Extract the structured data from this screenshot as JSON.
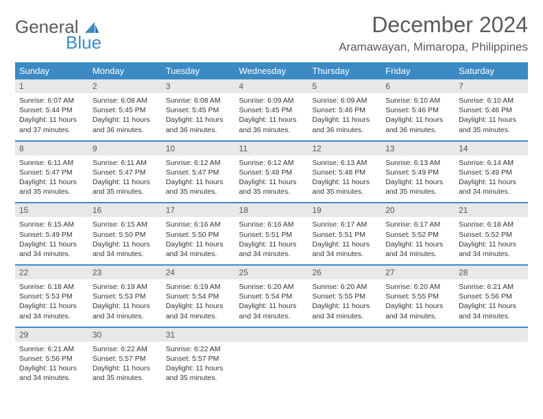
{
  "brand": {
    "part1": "General",
    "part2": "Blue"
  },
  "title": "December 2024",
  "location": "Aramawayan, Mimaropa, Philippines",
  "colors": {
    "accent": "#3b8ac4",
    "daynum_bg": "#e8e8e8",
    "text": "#333333",
    "title_text": "#5a5a5a"
  },
  "weekdays": [
    "Sunday",
    "Monday",
    "Tuesday",
    "Wednesday",
    "Thursday",
    "Friday",
    "Saturday"
  ],
  "weeks": [
    [
      {
        "n": "1",
        "sr": "6:07 AM",
        "ss": "5:44 PM",
        "dl": "11 hours and 37 minutes."
      },
      {
        "n": "2",
        "sr": "6:08 AM",
        "ss": "5:45 PM",
        "dl": "11 hours and 36 minutes."
      },
      {
        "n": "3",
        "sr": "6:08 AM",
        "ss": "5:45 PM",
        "dl": "11 hours and 36 minutes."
      },
      {
        "n": "4",
        "sr": "6:09 AM",
        "ss": "5:45 PM",
        "dl": "11 hours and 36 minutes."
      },
      {
        "n": "5",
        "sr": "6:09 AM",
        "ss": "5:46 PM",
        "dl": "11 hours and 36 minutes."
      },
      {
        "n": "6",
        "sr": "6:10 AM",
        "ss": "5:46 PM",
        "dl": "11 hours and 36 minutes."
      },
      {
        "n": "7",
        "sr": "6:10 AM",
        "ss": "5:46 PM",
        "dl": "11 hours and 35 minutes."
      }
    ],
    [
      {
        "n": "8",
        "sr": "6:11 AM",
        "ss": "5:47 PM",
        "dl": "11 hours and 35 minutes."
      },
      {
        "n": "9",
        "sr": "6:11 AM",
        "ss": "5:47 PM",
        "dl": "11 hours and 35 minutes."
      },
      {
        "n": "10",
        "sr": "6:12 AM",
        "ss": "5:47 PM",
        "dl": "11 hours and 35 minutes."
      },
      {
        "n": "11",
        "sr": "6:12 AM",
        "ss": "5:48 PM",
        "dl": "11 hours and 35 minutes."
      },
      {
        "n": "12",
        "sr": "6:13 AM",
        "ss": "5:48 PM",
        "dl": "11 hours and 35 minutes."
      },
      {
        "n": "13",
        "sr": "6:13 AM",
        "ss": "5:49 PM",
        "dl": "11 hours and 35 minutes."
      },
      {
        "n": "14",
        "sr": "6:14 AM",
        "ss": "5:49 PM",
        "dl": "11 hours and 34 minutes."
      }
    ],
    [
      {
        "n": "15",
        "sr": "6:15 AM",
        "ss": "5:49 PM",
        "dl": "11 hours and 34 minutes."
      },
      {
        "n": "16",
        "sr": "6:15 AM",
        "ss": "5:50 PM",
        "dl": "11 hours and 34 minutes."
      },
      {
        "n": "17",
        "sr": "6:16 AM",
        "ss": "5:50 PM",
        "dl": "11 hours and 34 minutes."
      },
      {
        "n": "18",
        "sr": "6:16 AM",
        "ss": "5:51 PM",
        "dl": "11 hours and 34 minutes."
      },
      {
        "n": "19",
        "sr": "6:17 AM",
        "ss": "5:51 PM",
        "dl": "11 hours and 34 minutes."
      },
      {
        "n": "20",
        "sr": "6:17 AM",
        "ss": "5:52 PM",
        "dl": "11 hours and 34 minutes."
      },
      {
        "n": "21",
        "sr": "6:18 AM",
        "ss": "5:52 PM",
        "dl": "11 hours and 34 minutes."
      }
    ],
    [
      {
        "n": "22",
        "sr": "6:18 AM",
        "ss": "5:53 PM",
        "dl": "11 hours and 34 minutes."
      },
      {
        "n": "23",
        "sr": "6:19 AM",
        "ss": "5:53 PM",
        "dl": "11 hours and 34 minutes."
      },
      {
        "n": "24",
        "sr": "6:19 AM",
        "ss": "5:54 PM",
        "dl": "11 hours and 34 minutes."
      },
      {
        "n": "25",
        "sr": "6:20 AM",
        "ss": "5:54 PM",
        "dl": "11 hours and 34 minutes."
      },
      {
        "n": "26",
        "sr": "6:20 AM",
        "ss": "5:55 PM",
        "dl": "11 hours and 34 minutes."
      },
      {
        "n": "27",
        "sr": "6:20 AM",
        "ss": "5:55 PM",
        "dl": "11 hours and 34 minutes."
      },
      {
        "n": "28",
        "sr": "6:21 AM",
        "ss": "5:56 PM",
        "dl": "11 hours and 34 minutes."
      }
    ],
    [
      {
        "n": "29",
        "sr": "6:21 AM",
        "ss": "5:56 PM",
        "dl": "11 hours and 34 minutes."
      },
      {
        "n": "30",
        "sr": "6:22 AM",
        "ss": "5:57 PM",
        "dl": "11 hours and 35 minutes."
      },
      {
        "n": "31",
        "sr": "6:22 AM",
        "ss": "5:57 PM",
        "dl": "11 hours and 35 minutes."
      },
      {
        "empty": true
      },
      {
        "empty": true
      },
      {
        "empty": true
      },
      {
        "empty": true
      }
    ]
  ],
  "labels": {
    "sunrise": "Sunrise:",
    "sunset": "Sunset:",
    "daylight": "Daylight:"
  }
}
